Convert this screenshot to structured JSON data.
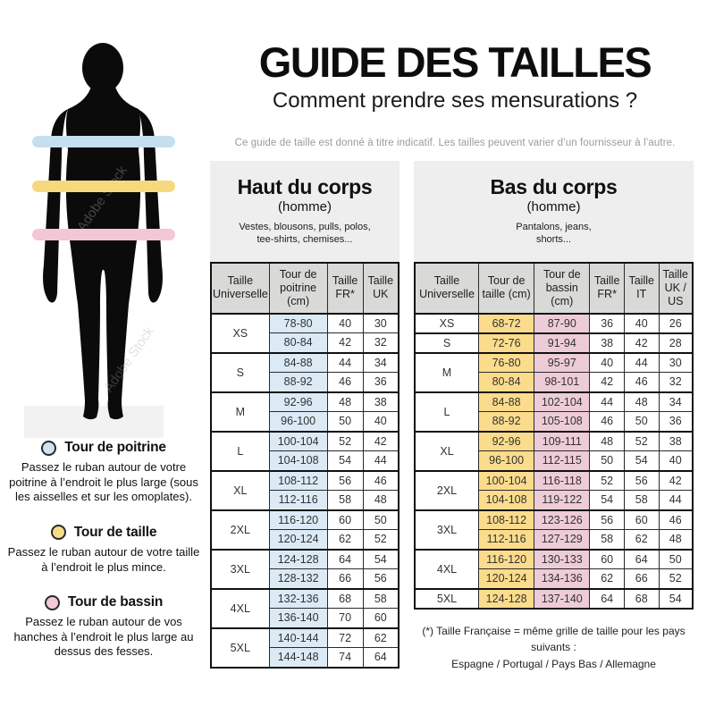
{
  "page": {
    "title": "GUIDE DES TAILLES",
    "subtitle": "Comment prendre ses mensurations ?",
    "disclaimer": "Ce guide de taille est donné à titre indicatif. Les tailles peuvent varier d’un fournisseur à l’autre."
  },
  "figure": {
    "watermark": "Adobe Stock",
    "bands": [
      {
        "name": "tour-de-poitrine",
        "color": "#c5dff0"
      },
      {
        "name": "tour-de-taille",
        "color": "#f6d87f"
      },
      {
        "name": "tour-de-bassin",
        "color": "#f3c7d3"
      }
    ]
  },
  "legend": {
    "items": [
      {
        "title": "Tour de poitrine",
        "color": "#cfe4f0",
        "text": "Passez le ruban autour de votre poitrine à l’endroit le plus large (sous les aisselles et sur les omoplates)."
      },
      {
        "title": "Tour de taille",
        "color": "#f6dc85",
        "text": "Passez le ruban autour de votre taille à l’endroit le plus mince."
      },
      {
        "title": "Tour de bassin",
        "color": "#f2c9d5",
        "text": "Passez le ruban autour de vos hanches à l’endroit le plus large au dessus des fesses."
      }
    ]
  },
  "upper_table": {
    "title": "Haut du corps",
    "subtitle": "(homme)",
    "description": "Vestes, blousons, pulls, polos, tee-shirts, chemises...",
    "columns": [
      "Taille Universelle",
      "Tour de poitrine (cm)",
      "Taille FR*",
      "Taille UK"
    ],
    "cell_classes": [
      "hl-blue",
      "",
      ""
    ],
    "col_widths": [
      "31%",
      "31%",
      "19%",
      "19%"
    ],
    "groups": [
      {
        "size": "XS",
        "rows": [
          [
            "78-80",
            "40",
            "30"
          ],
          [
            "80-84",
            "42",
            "32"
          ]
        ]
      },
      {
        "size": "S",
        "rows": [
          [
            "84-88",
            "44",
            "34"
          ],
          [
            "88-92",
            "46",
            "36"
          ]
        ]
      },
      {
        "size": "M",
        "rows": [
          [
            "92-96",
            "48",
            "38"
          ],
          [
            "96-100",
            "50",
            "40"
          ]
        ]
      },
      {
        "size": "L",
        "rows": [
          [
            "100-104",
            "52",
            "42"
          ],
          [
            "104-108",
            "54",
            "44"
          ]
        ]
      },
      {
        "size": "XL",
        "rows": [
          [
            "108-112",
            "56",
            "46"
          ],
          [
            "112-116",
            "58",
            "48"
          ]
        ]
      },
      {
        "size": "2XL",
        "rows": [
          [
            "116-120",
            "60",
            "50"
          ],
          [
            "120-124",
            "62",
            "52"
          ]
        ]
      },
      {
        "size": "3XL",
        "rows": [
          [
            "124-128",
            "64",
            "54"
          ],
          [
            "128-132",
            "66",
            "56"
          ]
        ]
      },
      {
        "size": "4XL",
        "rows": [
          [
            "132-136",
            "68",
            "58"
          ],
          [
            "136-140",
            "70",
            "60"
          ]
        ]
      },
      {
        "size": "5XL",
        "rows": [
          [
            "140-144",
            "72",
            "62"
          ],
          [
            "144-148",
            "74",
            "64"
          ]
        ]
      }
    ]
  },
  "lower_table": {
    "title": "Bas du corps",
    "subtitle": "(homme)",
    "description": "Pantalons, jeans, shorts...",
    "columns": [
      "Taille Universelle",
      "Tour de taille (cm)",
      "Tour de bassin (cm)",
      "Taille FR*",
      "Taille IT",
      "Taille UK / US"
    ],
    "cell_classes": [
      "hl-yellow",
      "hl-pink",
      "",
      "",
      ""
    ],
    "col_widths": [
      "23%",
      "20%",
      "20%",
      "12.4%",
      "12.4%",
      "12.2%"
    ],
    "groups": [
      {
        "size": "XS",
        "rows": [
          [
            "68-72",
            "87-90",
            "36",
            "40",
            "26"
          ]
        ]
      },
      {
        "size": "S",
        "rows": [
          [
            "72-76",
            "91-94",
            "38",
            "42",
            "28"
          ]
        ]
      },
      {
        "size": "M",
        "rows": [
          [
            "76-80",
            "95-97",
            "40",
            "44",
            "30"
          ],
          [
            "80-84",
            "98-101",
            "42",
            "46",
            "32"
          ]
        ]
      },
      {
        "size": "L",
        "rows": [
          [
            "84-88",
            "102-104",
            "44",
            "48",
            "34"
          ],
          [
            "88-92",
            "105-108",
            "46",
            "50",
            "36"
          ]
        ]
      },
      {
        "size": "XL",
        "rows": [
          [
            "92-96",
            "109-111",
            "48",
            "52",
            "38"
          ],
          [
            "96-100",
            "112-115",
            "50",
            "54",
            "40"
          ]
        ]
      },
      {
        "size": "2XL",
        "rows": [
          [
            "100-104",
            "116-118",
            "52",
            "56",
            "42"
          ],
          [
            "104-108",
            "119-122",
            "54",
            "58",
            "44"
          ]
        ]
      },
      {
        "size": "3XL",
        "rows": [
          [
            "108-112",
            "123-126",
            "56",
            "60",
            "46"
          ],
          [
            "112-116",
            "127-129",
            "58",
            "62",
            "48"
          ]
        ]
      },
      {
        "size": "4XL",
        "rows": [
          [
            "116-120",
            "130-133",
            "60",
            "64",
            "50"
          ],
          [
            "120-124",
            "134-136",
            "62",
            "66",
            "52"
          ]
        ]
      },
      {
        "size": "5XL",
        "rows": [
          [
            "124-128",
            "137-140",
            "64",
            "68",
            "54"
          ]
        ]
      }
    ]
  },
  "footnote": {
    "line1": "(*) Taille Française = même grille de taille pour les pays suivants :",
    "line2": "Espagne / Portugal / Pays Bas / Allemagne"
  }
}
